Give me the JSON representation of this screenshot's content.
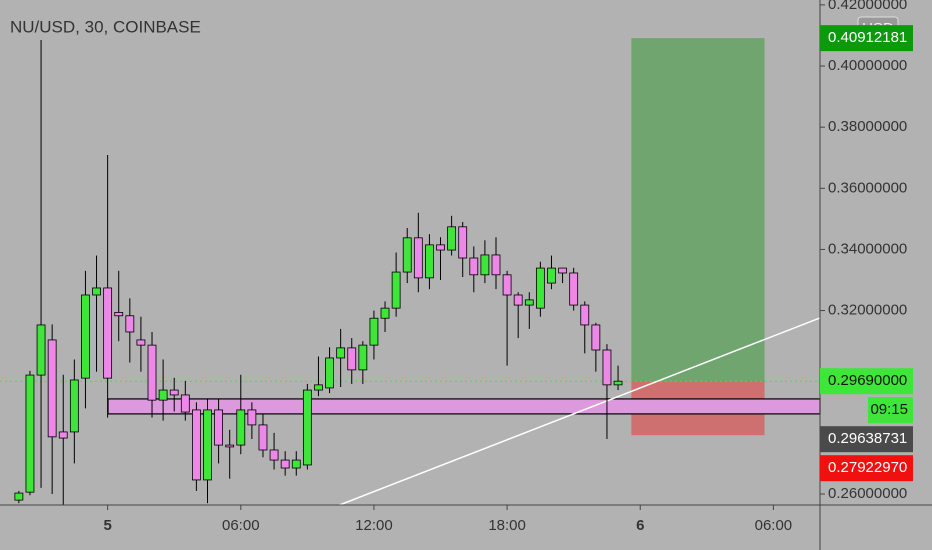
{
  "chart_data": {
    "type": "candlestick",
    "title": "NU/USD, 30, COINBASE",
    "currency": "USD",
    "open": [
      0.258,
      0.2606,
      0.2989,
      0.3104,
      0.2803,
      0.2803,
      0.2979,
      0.3251,
      0.3274,
      0.3194,
      0.3183,
      0.3104,
      0.3087,
      0.2907,
      0.294,
      0.2924,
      0.2875,
      0.2646,
      0.2875,
      0.276,
      0.276,
      0.2875,
      0.2826,
      0.2744,
      0.2711,
      0.2685,
      0.2695,
      0.294,
      0.2947,
      0.3045,
      0.3078,
      0.3006,
      0.3087,
      0.3175,
      0.3208,
      0.3326,
      0.3438,
      0.3307,
      0.3415,
      0.3398,
      0.3474,
      0.3372,
      0.3317,
      0.3382,
      0.3317,
      0.3251,
      0.3218,
      0.3208,
      0.329,
      0.3339,
      0.3323,
      0.3218,
      0.3153,
      0.3071,
      0.2957
    ],
    "high": [
      0.261,
      0.3003,
      0.4085,
      0.3155,
      0.299,
      0.304,
      0.333,
      0.338,
      0.3709,
      0.333,
      0.324,
      0.318,
      0.313,
      0.304,
      0.298,
      0.297,
      0.29,
      0.291,
      0.291,
      0.281,
      0.299,
      0.29,
      0.286,
      0.28,
      0.274,
      0.274,
      0.296,
      0.305,
      0.308,
      0.314,
      0.311,
      0.31,
      0.32,
      0.323,
      0.339,
      0.347,
      0.352,
      0.345,
      0.344,
      0.351,
      0.349,
      0.341,
      0.343,
      0.344,
      0.333,
      0.326,
      0.326,
      0.336,
      0.338,
      0.334,
      0.334,
      0.323,
      0.316,
      0.309,
      0.302
    ],
    "low": [
      0.257,
      0.2596,
      0.262,
      0.26,
      0.2564,
      0.27,
      0.288,
      0.3,
      0.285,
      0.31,
      0.303,
      0.3,
      0.285,
      0.284,
      0.287,
      0.284,
      0.261,
      0.257,
      0.27,
      0.265,
      0.273,
      0.278,
      0.272,
      0.268,
      0.266,
      0.266,
      0.268,
      0.292,
      0.293,
      0.295,
      0.296,
      0.296,
      0.304,
      0.313,
      0.318,
      0.329,
      0.326,
      0.327,
      0.33,
      0.338,
      0.331,
      0.326,
      0.329,
      0.327,
      0.302,
      0.311,
      0.314,
      0.318,
      0.327,
      0.329,
      0.32,
      0.306,
      0.3,
      0.278,
      0.294
    ],
    "close": [
      0.2603,
      0.2989,
      0.3153,
      0.2787,
      0.2783,
      0.2973,
      0.3251,
      0.3274,
      0.2979,
      0.3183,
      0.313,
      0.3087,
      0.2907,
      0.294,
      0.2924,
      0.2868,
      0.2646,
      0.2875,
      0.276,
      0.2754,
      0.2875,
      0.2826,
      0.2744,
      0.2711,
      0.2685,
      0.2711,
      0.294,
      0.2957,
      0.3045,
      0.3078,
      0.3006,
      0.3087,
      0.3175,
      0.3208,
      0.3326,
      0.3438,
      0.3307,
      0.3415,
      0.3398,
      0.3474,
      0.3372,
      0.3317,
      0.3382,
      0.3317,
      0.3251,
      0.3218,
      0.3235,
      0.3339,
      0.3339,
      0.3323,
      0.3218,
      0.3153,
      0.3071,
      0.2957,
      0.2969
    ],
    "up_color": "#3ee63a",
    "down_color": "#ee88e8",
    "xlim": [
      -1.7,
      72.2
    ],
    "ylim": [
      0.2564,
      0.4216
    ],
    "xticks": [
      {
        "value": 8,
        "label": "5"
      },
      {
        "value": 20,
        "label": "06:00"
      },
      {
        "value": 32,
        "label": "12:00"
      },
      {
        "value": 44,
        "label": "18:00"
      },
      {
        "value": 56,
        "label": "6"
      },
      {
        "value": 68,
        "label": "06:00"
      }
    ],
    "yticks": [
      {
        "value": 0.26,
        "label": "0.26000000"
      },
      {
        "value": 0.32,
        "label": "0.32000000"
      },
      {
        "value": 0.34,
        "label": "0.34000000"
      },
      {
        "value": 0.36,
        "label": "0.36000000"
      },
      {
        "value": 0.38,
        "label": "0.38000000"
      },
      {
        "value": 0.4,
        "label": "0.40000000"
      },
      {
        "value": 0.42,
        "label": "0.42000000"
      }
    ],
    "zone": [
      0.2862,
      0.2911
    ],
    "trendline": {
      "x": [
        28.9,
        72.2
      ],
      "y": [
        0.2564,
        0.3176
      ]
    },
    "position": {
      "x": [
        55.2,
        67.2
      ],
      "entry": 0.2969,
      "target": 0.40912181,
      "stop": 0.2792297
    },
    "countdown": "09:15",
    "price_labels": [
      {
        "value": 0.40912181,
        "label": "0.40912181",
        "color": "#0c9a0c"
      },
      {
        "value": 0.2969,
        "label": "0.29690000",
        "color": "#3ee63a"
      },
      {
        "value": 0.29638731,
        "label": "0.29638731",
        "color": "#4a4a4a"
      },
      {
        "value": 0.2792297,
        "label": "0.27922970",
        "color": "#f01010"
      }
    ]
  }
}
